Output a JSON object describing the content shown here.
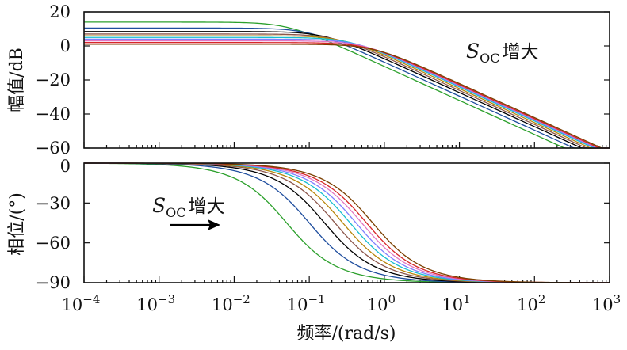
{
  "chart_data": [
    {
      "type": "line",
      "subplot": "top",
      "ylabel": "幅值/dB",
      "xscale": "log",
      "xlim": [
        0.0001,
        1000
      ],
      "ylim": [
        -60,
        20
      ],
      "y_ticks": [
        "20",
        "0",
        "−20",
        "−40",
        "−60"
      ],
      "annotation": {
        "symbol": "S",
        "subscript": "OC",
        "text": "增大"
      },
      "series": [
        {
          "color": "#2ca02c",
          "gain_db": 14,
          "corner_rad_s": 0.05
        },
        {
          "color": "#1f4e9e",
          "gain_db": 10.5,
          "corner_rad_s": 0.1
        },
        {
          "color": "#000000",
          "gain_db": 8.5,
          "corner_rad_s": 0.16
        },
        {
          "color": "#8c564b",
          "gain_db": 7,
          "corner_rad_s": 0.22
        },
        {
          "color": "#b8860b",
          "gain_db": 6,
          "corner_rad_s": 0.28
        },
        {
          "color": "#17becf",
          "gain_db": 5,
          "corner_rad_s": 0.35
        },
        {
          "color": "#7f7fff",
          "gain_db": 4,
          "corner_rad_s": 0.42
        },
        {
          "color": "#e377c2",
          "gain_db": 3,
          "corner_rad_s": 0.5
        },
        {
          "color": "#d62728",
          "gain_db": 2,
          "corner_rad_s": 0.58
        },
        {
          "color": "#7b3f00",
          "gain_db": 1,
          "corner_rad_s": 0.7
        }
      ]
    },
    {
      "type": "line",
      "subplot": "bottom",
      "ylabel": "相位/(°)",
      "xlabel": "频率/(rad/s)",
      "xscale": "log",
      "xlim": [
        0.0001,
        1000
      ],
      "ylim": [
        -90,
        0
      ],
      "y_ticks": [
        "0",
        "−30",
        "−60",
        "−90"
      ],
      "x_ticks": [
        {
          "base": "10",
          "exp": "−4"
        },
        {
          "base": "10",
          "exp": "−3"
        },
        {
          "base": "10",
          "exp": "−2"
        },
        {
          "base": "10",
          "exp": "−1"
        },
        {
          "base": "10",
          "exp": "0"
        },
        {
          "base": "10",
          "exp": "1"
        },
        {
          "base": "10",
          "exp": "2"
        },
        {
          "base": "10",
          "exp": "3"
        }
      ],
      "annotation": {
        "symbol": "S",
        "subscript": "OC",
        "text": "增大",
        "arrow": "right"
      }
    }
  ]
}
